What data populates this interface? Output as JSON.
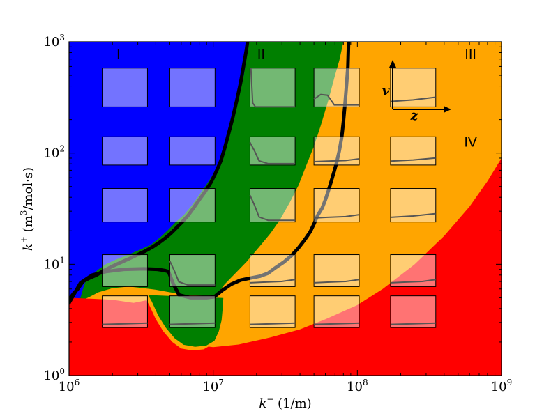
{
  "chart_data": {
    "type": "heatmap",
    "title": "",
    "x_scale": "log",
    "y_scale": "log",
    "xlim": [
      1000000,
      1000000000
    ],
    "ylim": [
      1,
      1000
    ],
    "x_ticks": [
      {
        "value": 1000000,
        "base": "10",
        "exp": "6"
      },
      {
        "value": 10000000,
        "base": "10",
        "exp": "7"
      },
      {
        "value": 100000000,
        "base": "10",
        "exp": "8"
      },
      {
        "value": 1000000000,
        "base": "10",
        "exp": "9"
      }
    ],
    "y_ticks": [
      {
        "value": 1,
        "base": "10",
        "exp": "0"
      },
      {
        "value": 10,
        "base": "10",
        "exp": "1"
      },
      {
        "value": 100,
        "base": "10",
        "exp": "2"
      },
      {
        "value": 1000,
        "base": "10",
        "exp": "3"
      }
    ],
    "xlabel": {
      "sym": "k",
      "sup": "−",
      "unit": " (1/m)"
    },
    "ylabel": {
      "sym": "k",
      "sup": "+",
      "unit_pre": " (m",
      "unit_sup": "3",
      "unit_post": "/mol·s)"
    },
    "regions": [
      {
        "name": "I",
        "color": "#0000ff",
        "label_at": {
          "x": 2200000,
          "y": 780
        }
      },
      {
        "name": "II",
        "color": "#007f00",
        "label_at": {
          "x": 21500000,
          "y": 780
        }
      },
      {
        "name": "III",
        "color": "#ffa500",
        "label_at": {
          "x": 610000000,
          "y": 780
        }
      },
      {
        "name": "IV",
        "color": "#ff0000",
        "label_at": {
          "x": 610000000,
          "y": 126
        }
      }
    ],
    "boundaries": {
      "I_II": [
        [
          1000000,
          4.5
        ],
        [
          1200000,
          5
        ],
        [
          1250000,
          6
        ],
        [
          1300000,
          7
        ],
        [
          1450000,
          8
        ],
        [
          1600000,
          9
        ],
        [
          1800000,
          10
        ],
        [
          2100000,
          11
        ],
        [
          2500000,
          12
        ],
        [
          3100000,
          13.5
        ],
        [
          3700000,
          15
        ],
        [
          4300000,
          17.5
        ],
        [
          4800000,
          20
        ],
        [
          5500000,
          24
        ],
        [
          6300000,
          28
        ],
        [
          7000000,
          33
        ],
        [
          7800000,
          40
        ],
        [
          8700000,
          49
        ],
        [
          9800000,
          62
        ],
        [
          10800000,
          80
        ],
        [
          11800000,
          105
        ],
        [
          12800000,
          150
        ],
        [
          14000000,
          220
        ],
        [
          15200000,
          330
        ],
        [
          16300000,
          500
        ],
        [
          17000000,
          700
        ],
        [
          17400000,
          1000
        ]
      ],
      "II_III": [
        [
          5200000,
          4.4
        ],
        [
          6200000,
          4.9
        ],
        [
          7600000,
          5
        ],
        [
          9500000,
          5.2
        ],
        [
          10700000,
          5.4
        ],
        [
          12000000,
          6.6
        ],
        [
          14000000,
          8.1
        ],
        [
          17000000,
          10.5
        ],
        [
          21000000,
          14.5
        ],
        [
          25000000,
          19
        ],
        [
          29000000,
          25
        ],
        [
          34000000,
          36
        ],
        [
          39000000,
          51
        ],
        [
          44000000,
          76
        ],
        [
          50000000,
          115
        ],
        [
          56000000,
          180
        ],
        [
          63000000,
          300
        ],
        [
          70000000,
          500
        ],
        [
          75000000,
          680
        ],
        [
          80000000,
          1000
        ]
      ],
      "III_IV": [
        [
          1000000,
          5
        ],
        [
          2000000,
          4.8
        ],
        [
          2800000,
          4.5
        ],
        [
          3600000,
          4.8
        ],
        [
          4200000,
          4.3
        ],
        [
          4900000,
          3.2
        ],
        [
          5700000,
          2.3
        ],
        [
          7000000,
          1.9
        ],
        [
          10000000,
          1.8
        ],
        [
          15000000,
          1.9
        ],
        [
          25000000,
          2.2
        ],
        [
          40000000,
          2.6
        ],
        [
          60000000,
          3.2
        ],
        [
          100000000,
          4.3
        ],
        [
          150000000,
          6
        ],
        [
          250000000,
          10
        ],
        [
          400000000,
          18
        ],
        [
          600000000,
          33
        ],
        [
          800000000,
          56
        ],
        [
          1000000000,
          90
        ]
      ],
      "green_bump": [
        [
          3400000,
          4.9
        ],
        [
          3600000,
          4.3
        ],
        [
          4000000,
          3.2
        ],
        [
          4500000,
          2.5
        ],
        [
          5200000,
          2.0
        ],
        [
          6000000,
          1.75
        ],
        [
          7200000,
          1.68
        ],
        [
          8600000,
          1.72
        ],
        [
          9800000,
          1.9
        ],
        [
          10500000,
          2.3
        ],
        [
          11000000,
          2.9
        ],
        [
          11200000,
          3.8
        ],
        [
          11300000,
          4.6
        ]
      ],
      "cross_curve": [
        [
          1000000,
          4.5
        ],
        [
          1200000,
          4.7
        ],
        [
          1350000,
          5
        ],
        [
          1600000,
          5.6
        ],
        [
          2000000,
          6.1
        ],
        [
          2600000,
          6.3
        ],
        [
          3300000,
          6.1
        ],
        [
          4000000,
          5.9
        ],
        [
          5000000,
          5.6
        ],
        [
          6500000,
          5.3
        ],
        [
          9000000,
          5.2
        ],
        [
          13000000,
          5.4
        ]
      ]
    },
    "thick_lines": [
      {
        "name": "boundary-left",
        "points": [
          [
            1000000,
            4.5
          ],
          [
            1020000,
            5
          ],
          [
            1080000,
            5.5
          ],
          [
            1150000,
            6
          ],
          [
            1200000,
            6.5
          ],
          [
            1250000,
            7
          ],
          [
            1380000,
            7.5
          ],
          [
            1550000,
            8
          ],
          [
            1750000,
            8.8
          ],
          [
            2000000,
            9.6
          ],
          [
            2250000,
            10.3
          ],
          [
            2600000,
            11.2
          ],
          [
            3000000,
            12.2
          ],
          [
            3400000,
            13.2
          ],
          [
            3800000,
            14.3
          ],
          [
            4200000,
            15.6
          ],
          [
            4600000,
            17
          ],
          [
            5100000,
            19
          ],
          [
            5600000,
            21.5
          ],
          [
            6100000,
            24
          ],
          [
            6700000,
            27.5
          ],
          [
            7300000,
            32
          ],
          [
            8000000,
            38
          ],
          [
            8800000,
            45
          ],
          [
            9700000,
            55
          ],
          [
            10500000,
            68
          ],
          [
            11300000,
            85
          ],
          [
            12000000,
            110
          ],
          [
            12800000,
            150
          ],
          [
            13700000,
            210
          ],
          [
            14600000,
            300
          ],
          [
            15500000,
            430
          ],
          [
            16300000,
            620
          ],
          [
            17000000,
            850
          ],
          [
            17300000,
            1000
          ]
        ]
      },
      {
        "name": "boundary-right",
        "points": [
          [
            4900000,
            8.6
          ],
          [
            5300000,
            6.6
          ],
          [
            5800000,
            5.3
          ],
          [
            7000000,
            5
          ],
          [
            9000000,
            5
          ],
          [
            10200000,
            5.1
          ],
          [
            11500000,
            5.8
          ],
          [
            13300000,
            6.6
          ],
          [
            15500000,
            7.2
          ],
          [
            18000000,
            7.5
          ],
          [
            21000000,
            7.8
          ],
          [
            24000000,
            8.3
          ],
          [
            27000000,
            9.3
          ],
          [
            31000000,
            10.5
          ],
          [
            35000000,
            12
          ],
          [
            39000000,
            14
          ],
          [
            43000000,
            16.5
          ],
          [
            47000000,
            19.5
          ],
          [
            50000000,
            23
          ],
          [
            53000000,
            27.5
          ],
          [
            57000000,
            32
          ],
          [
            60000000,
            38
          ],
          [
            63000000,
            46
          ],
          [
            66000000,
            56
          ],
          [
            69000000,
            68
          ],
          [
            72000000,
            83
          ],
          [
            75000000,
            105
          ],
          [
            78000000,
            140
          ],
          [
            80000000,
            190
          ],
          [
            82000000,
            270
          ],
          [
            84000000,
            400
          ],
          [
            86000000,
            600
          ],
          [
            87000000,
            1000
          ]
        ]
      },
      {
        "name": "boundary-low",
        "points": [
          [
            1000000,
            4.5
          ],
          [
            1200000,
            6.8
          ],
          [
            1450000,
            8
          ],
          [
            1800000,
            8.6
          ],
          [
            2400000,
            9
          ],
          [
            3300000,
            9.1
          ],
          [
            4100000,
            9
          ],
          [
            4600000,
            8.8
          ],
          [
            4900000,
            8.6
          ]
        ]
      }
    ],
    "insets": [
      {
        "x": [
          1700000,
          3500000
        ],
        "y": [
          260,
          580
        ],
        "curve": "none"
      },
      {
        "x": [
          5000000,
          10300000
        ],
        "y": [
          260,
          580
        ],
        "curve": "none"
      },
      {
        "x": [
          18000000,
          37000000
        ],
        "y": [
          260,
          580
        ],
        "curve": "spike"
      },
      {
        "x": [
          50000000,
          103000000
        ],
        "y": [
          260,
          580
        ],
        "curve": "bump"
      },
      {
        "x": [
          170000000,
          350000000
        ],
        "y": [
          260,
          580
        ],
        "curve": "rise"
      },
      {
        "x": [
          1700000,
          3500000
        ],
        "y": [
          78,
          140
        ],
        "curve": "none"
      },
      {
        "x": [
          5000000,
          10300000
        ],
        "y": [
          78,
          140
        ],
        "curve": "none"
      },
      {
        "x": [
          18000000,
          37000000
        ],
        "y": [
          78,
          140
        ],
        "curve": "drop"
      },
      {
        "x": [
          50000000,
          103000000
        ],
        "y": [
          78,
          140
        ],
        "curve": "flatrise"
      },
      {
        "x": [
          170000000,
          350000000
        ],
        "y": [
          78,
          140
        ],
        "curve": "rise"
      },
      {
        "x": [
          1700000,
          3500000
        ],
        "y": [
          24,
          48
        ],
        "curve": "none"
      },
      {
        "x": [
          5000000,
          10300000
        ],
        "y": [
          24,
          48
        ],
        "curve": "none"
      },
      {
        "x": [
          18000000,
          37000000
        ],
        "y": [
          24,
          48
        ],
        "curve": "drop"
      },
      {
        "x": [
          50000000,
          103000000
        ],
        "y": [
          24,
          48
        ],
        "curve": "flatrise"
      },
      {
        "x": [
          170000000,
          350000000
        ],
        "y": [
          24,
          48
        ],
        "curve": "rise"
      },
      {
        "x": [
          1700000,
          3500000
        ],
        "y": [
          6.3,
          12.2
        ],
        "curve": "none"
      },
      {
        "x": [
          5000000,
          10300000
        ],
        "y": [
          6.3,
          12.2
        ],
        "curve": "drop"
      },
      {
        "x": [
          18000000,
          37000000
        ],
        "y": [
          6.3,
          12.2
        ],
        "curve": "flatrise"
      },
      {
        "x": [
          50000000,
          103000000
        ],
        "y": [
          6.3,
          12.2
        ],
        "curve": "flatrise"
      },
      {
        "x": [
          170000000,
          350000000
        ],
        "y": [
          6.3,
          12.2
        ],
        "curve": "flatrise"
      },
      {
        "x": [
          1700000,
          3500000
        ],
        "y": [
          2.7,
          5.2
        ],
        "curve": "flat"
      },
      {
        "x": [
          5000000,
          10300000
        ],
        "y": [
          2.7,
          5.2
        ],
        "curve": "flat"
      },
      {
        "x": [
          18000000,
          37000000
        ],
        "y": [
          2.7,
          5.2
        ],
        "curve": "flat"
      },
      {
        "x": [
          50000000,
          103000000
        ],
        "y": [
          2.7,
          5.2
        ],
        "curve": "flat"
      },
      {
        "x": [
          170000000,
          350000000
        ],
        "y": [
          2.7,
          5.2
        ],
        "curve": "flat"
      }
    ],
    "inset_axes": {
      "v_label": "v",
      "z_label": "z"
    },
    "grid": false,
    "legend": "none"
  }
}
